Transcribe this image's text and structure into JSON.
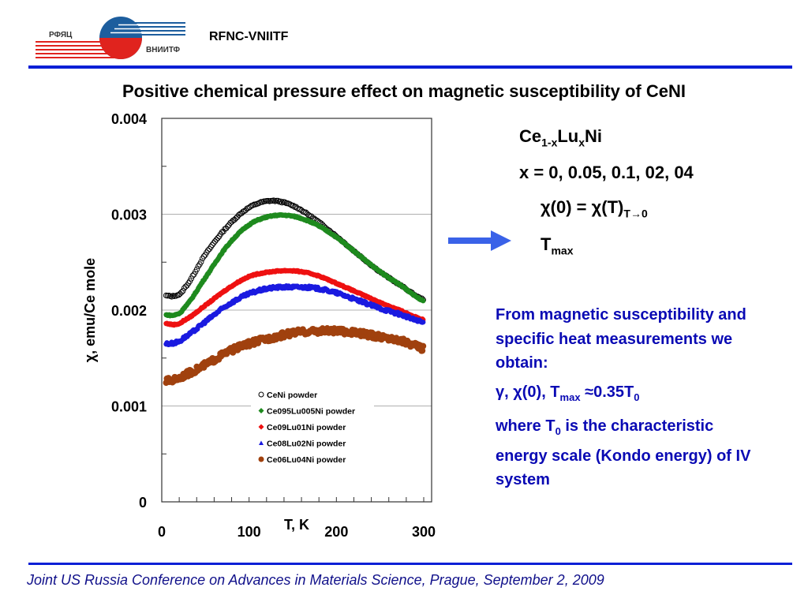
{
  "header": {
    "logo_text_left": "РФЯЦ",
    "logo_text_right": "ВНИИТФ",
    "org_name": "RFNC-VNIITF"
  },
  "slide_title": "Positive chemical pressure effect on magnetic susceptibility of CeNI",
  "chart_data": {
    "type": "scatter",
    "title": "",
    "xlabel": "T, K",
    "ylabel": "χ, emu/Ce mole",
    "xlim": [
      0,
      300
    ],
    "ylim": [
      0,
      0.004
    ],
    "xticks": [
      0,
      100,
      200,
      300
    ],
    "xtick_labels": [
      "0",
      "100",
      "200",
      "300"
    ],
    "yticks": [
      0,
      0.001,
      0.002,
      0.003,
      0.004
    ],
    "ytick_labels": [
      "0",
      "0.001",
      "0.002",
      "0.003",
      "0.004"
    ],
    "grid": "horizontal major",
    "legend_position": "center-bottom inside",
    "x": [
      5,
      15,
      25,
      50,
      75,
      100,
      125,
      150,
      175,
      200,
      225,
      250,
      275,
      300
    ],
    "series": [
      {
        "name": "CeNi powder",
        "marker": "open-circle",
        "color": "#000000",
        "values": [
          0.00215,
          0.00215,
          0.00222,
          0.00258,
          0.00287,
          0.00307,
          0.00314,
          0.00309,
          0.00295,
          0.00277,
          0.00258,
          0.0024,
          0.00225,
          0.00211
        ]
      },
      {
        "name": "Ce095Lu005Ni powder",
        "marker": "diamond",
        "color": "#1e8a1e",
        "values": [
          0.00195,
          0.00195,
          0.00202,
          0.00234,
          0.00267,
          0.00289,
          0.00298,
          0.00298,
          0.0029,
          0.00276,
          0.00258,
          0.0024,
          0.00225,
          0.0021
        ]
      },
      {
        "name": "Ce09Lu01Ni powder",
        "marker": "diamond",
        "color": "#ee1111",
        "values": [
          0.00186,
          0.00185,
          0.00189,
          0.00205,
          0.00222,
          0.00235,
          0.0024,
          0.00241,
          0.00237,
          0.00228,
          0.00218,
          0.00208,
          0.00199,
          0.0019
        ]
      },
      {
        "name": "Ce08Lu02Ni powder",
        "marker": "triangle",
        "color": "#1a1ae0",
        "values": [
          0.00165,
          0.00166,
          0.00171,
          0.00188,
          0.00205,
          0.00217,
          0.00223,
          0.00224,
          0.00223,
          0.00218,
          0.0021,
          0.00202,
          0.00195,
          0.00187
        ]
      },
      {
        "name": "Ce06Lu04Ni powder",
        "marker": "filled-circle",
        "color": "#a0410e",
        "values": [
          0.00126,
          0.00128,
          0.00132,
          0.00143,
          0.00156,
          0.00165,
          0.00171,
          0.00176,
          0.00178,
          0.00178,
          0.00176,
          0.00172,
          0.00168,
          0.0016
        ]
      }
    ]
  },
  "right_panel": {
    "formula_base": "Ce",
    "formula_sub1": "1-x",
    "formula_mid": "Lu",
    "formula_sub2": "x",
    "formula_end": "Ni",
    "x_values": "x = 0, 0.05, 0.1, 02, 04",
    "chi_line_main": "χ(0) = χ(T)",
    "chi_line_sub": "T→0",
    "tmax_main": "T",
    "tmax_sub": "max",
    "arrow_color": "#3a62e8"
  },
  "conclusion": {
    "para1": "From magnetic susceptibility and specific heat measurements we obtain:",
    "para2_a": "γ, χ(0), T",
    "para2_sub": "max",
    "para2_b": " ≈0.35T",
    "para2_sub2": "0",
    "para3_a": "where T",
    "para3_sub": "0",
    "para3_b": " is the characteristic energy scale (Kondo energy) of IV system",
    "text_color": "#0a0ab4"
  },
  "footer": {
    "text": "Joint US Russia Conference on Advances in Materials Science, Prague, September 2, 2009"
  }
}
